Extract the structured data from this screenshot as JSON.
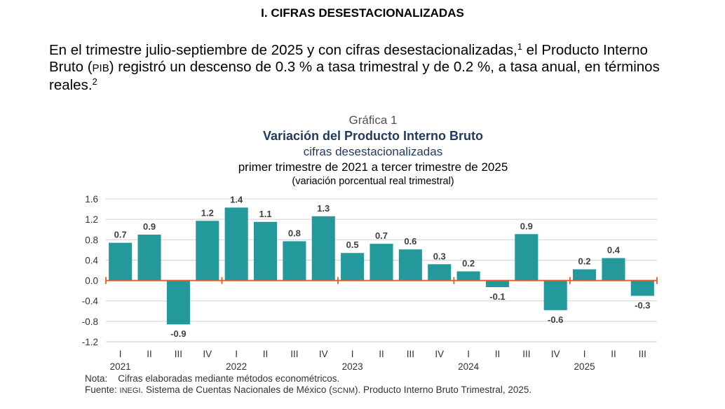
{
  "section_title": "I. CIFRAS DESESTACIONALIZADAS",
  "intro": {
    "part1": "En el trimestre julio-septiembre de 2025 y con cifras desestacionalizadas,",
    "sup1": "1",
    "part2": " el Producto Interno Bruto (",
    "pib": "PIB",
    "part3": ") registró un descenso de 0.3 % a tasa trimestral y de 0.2 %, a tasa anual, en términos reales.",
    "sup2": "2"
  },
  "chart_data": {
    "type": "bar",
    "label": "Gráfica 1",
    "title": "Variación del Producto Interno Bruto",
    "subtitle": "cifras desestacionalizadas",
    "period": "primer trimestre de 2021 a tercer trimestre de 2025",
    "unit": "(variación porcentual real trimestral)",
    "categories": [
      "I",
      "II",
      "III",
      "IV",
      "I",
      "II",
      "III",
      "IV",
      "I",
      "II",
      "III",
      "IV",
      "I",
      "II",
      "III",
      "IV",
      "I",
      "II",
      "III"
    ],
    "years": [
      "2021",
      "2022",
      "2023",
      "2024",
      "2025"
    ],
    "values": [
      0.74,
      0.9,
      -0.86,
      1.17,
      1.43,
      1.15,
      0.77,
      1.26,
      0.54,
      0.72,
      0.61,
      0.32,
      0.18,
      -0.13,
      0.91,
      -0.58,
      0.22,
      0.44,
      -0.3
    ],
    "value_labels": [
      "0.7",
      "0.9",
      "-0.9",
      "1.2",
      "1.4",
      "1.1",
      "0.8",
      "1.3",
      "0.5",
      "0.7",
      "0.6",
      "0.3",
      "0.2",
      "-0.1",
      "0.9",
      "-0.6",
      "0.2",
      "0.4",
      "-0.3"
    ],
    "ylim": [
      -1.2,
      1.6
    ],
    "yticks": [
      "1.6",
      "1.2",
      "0.8",
      "0.4",
      "0.0",
      "-0.4",
      "-0.8",
      "-1.2"
    ],
    "bar_color": "#23999b",
    "zero_line_color": "#e05a2b",
    "grid": true
  },
  "notes": {
    "nota_label": "Nota:",
    "nota_text": "Cifras elaboradas mediante métodos econométricos.",
    "fuente_label": "Fuente:",
    "inegi": "INEGI",
    "fuente_mid": ". Sistema de Cuentas Nacionales de México (",
    "scnm": "SCNM",
    "fuente_end": "). Producto Interno Bruto Trimestral, 2025."
  }
}
